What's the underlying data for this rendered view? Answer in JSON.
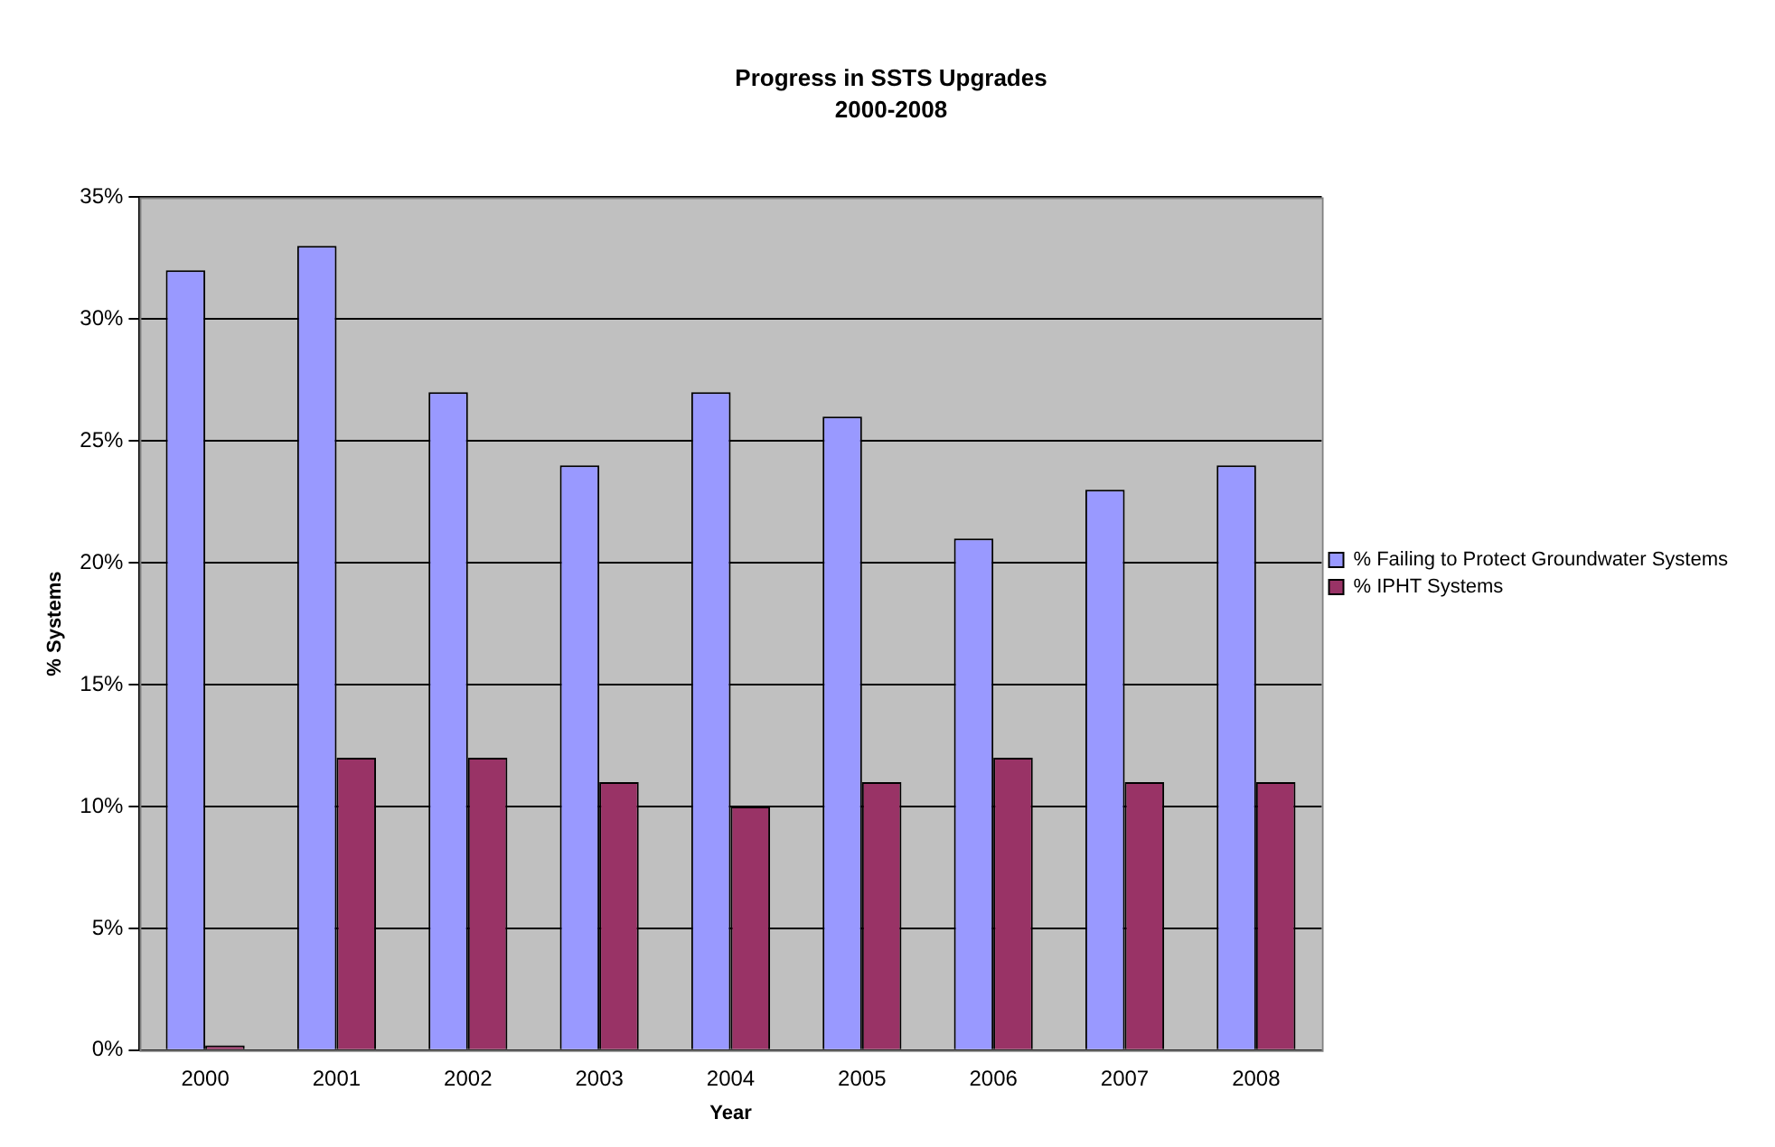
{
  "chart_data": {
    "type": "bar",
    "title": "Progress in SSTS Upgrades",
    "subtitle": "2000-2008",
    "xlabel": "Year",
    "ylabel": "% Systems",
    "categories": [
      "2000",
      "2001",
      "2002",
      "2003",
      "2004",
      "2005",
      "2006",
      "2007",
      "2008"
    ],
    "series": [
      {
        "name": "% Failing to Protect Groundwater Systems",
        "color": "#9999ff",
        "values": [
          32,
          33,
          27,
          24,
          27,
          26,
          21,
          23,
          24
        ]
      },
      {
        "name": "% IPHT Systems",
        "color": "#993366",
        "values": [
          0.2,
          12,
          12,
          11,
          10,
          11,
          12,
          11,
          11
        ]
      }
    ],
    "ylim": [
      0,
      35
    ],
    "yticks": [
      {
        "value": 0,
        "label": "0%"
      },
      {
        "value": 5,
        "label": "5%"
      },
      {
        "value": 10,
        "label": "10%"
      },
      {
        "value": 15,
        "label": "15%"
      },
      {
        "value": 20,
        "label": "20%"
      },
      {
        "value": 25,
        "label": "25%"
      },
      {
        "value": 30,
        "label": "30%"
      },
      {
        "value": 35,
        "label": "35%"
      }
    ],
    "grid": "y",
    "legend": "right"
  }
}
